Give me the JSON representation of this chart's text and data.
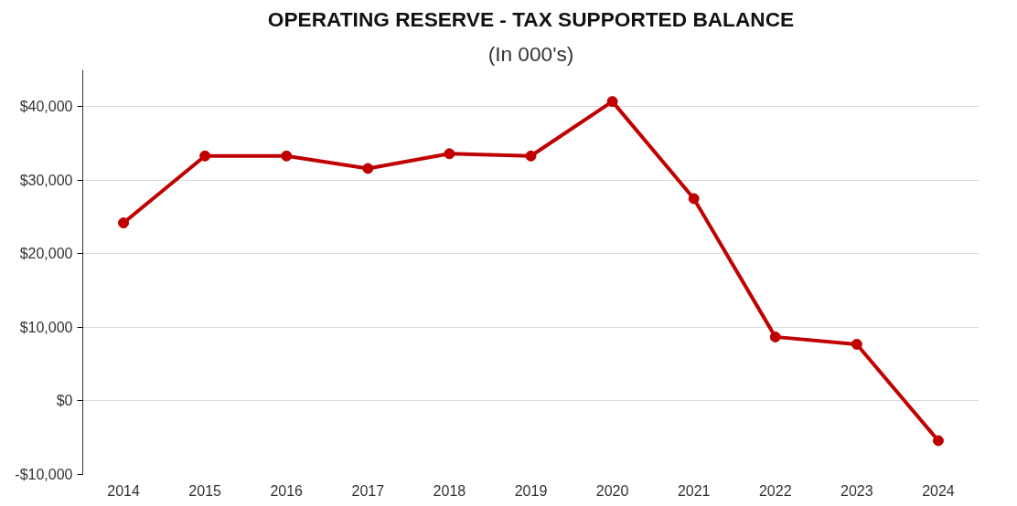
{
  "chart_data": {
    "type": "line",
    "title": "OPERATING RESERVE - TAX SUPPORTED BALANCE",
    "subtitle": "(In 000's)",
    "categories": [
      "2014",
      "2015",
      "2016",
      "2017",
      "2018",
      "2019",
      "2020",
      "2021",
      "2022",
      "2023",
      "2024"
    ],
    "series": [
      {
        "color": "#c00000",
        "values": [
          24200,
          33300,
          33300,
          31600,
          33600,
          33300,
          40700,
          27500,
          8700,
          7700,
          -5400
        ]
      }
    ],
    "ylim": [
      -10000,
      45000
    ],
    "yticks": [
      {
        "value": -10000,
        "label": "-$10,000"
      },
      {
        "value": 0,
        "label": "$0"
      },
      {
        "value": 10000,
        "label": "$10,000"
      },
      {
        "value": 20000,
        "label": "$20,000"
      },
      {
        "value": 30000,
        "label": "$30,000"
      },
      {
        "value": 40000,
        "label": "$40,000"
      }
    ],
    "grid": "y",
    "marker": "circle",
    "line_style": "solid"
  }
}
